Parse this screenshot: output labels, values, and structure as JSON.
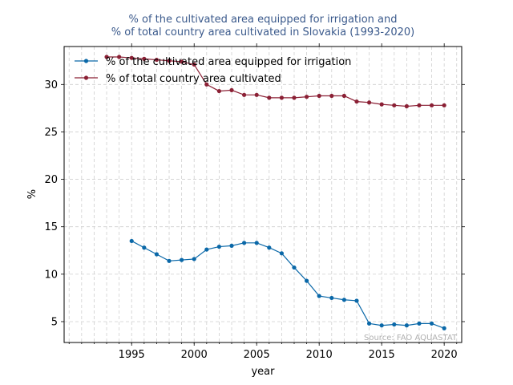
{
  "chart_data": {
    "type": "line",
    "title_lines": [
      "% of the cultivated area equipped for irrigation and",
      "% of total country area cultivated in Slovakia (1993-2020)"
    ],
    "xlabel": "year",
    "ylabel": "%",
    "xlim": [
      1989.6,
      2021.4
    ],
    "ylim": [
      2.8,
      34.0
    ],
    "x_ticks": [
      1995,
      2000,
      2005,
      2010,
      2015,
      2020
    ],
    "y_ticks": [
      5,
      10,
      15,
      20,
      25,
      30
    ],
    "grid": true,
    "legend_position": "top-left",
    "source": "Source: FAO AQUASTAT",
    "series": [
      {
        "name": "% of the cultivated area equipped for irrigation",
        "color": "#0a68a8",
        "x": [
          1995,
          1996,
          1997,
          1998,
          1999,
          2000,
          2001,
          2002,
          2003,
          2004,
          2005,
          2006,
          2007,
          2008,
          2009,
          2010,
          2011,
          2012,
          2013,
          2014,
          2015,
          2016,
          2017,
          2018,
          2019,
          2020
        ],
        "y": [
          13.5,
          12.8,
          12.1,
          11.4,
          11.5,
          11.6,
          12.6,
          12.9,
          13.0,
          13.3,
          13.3,
          12.8,
          12.2,
          10.7,
          9.3,
          7.7,
          7.5,
          7.3,
          7.2,
          4.8,
          4.6,
          4.7,
          4.6,
          4.8,
          4.8,
          4.3
        ]
      },
      {
        "name": "% of total country area cultivated",
        "color": "#8b2035",
        "x": [
          1993,
          1994,
          1995,
          1996,
          1997,
          1998,
          1999,
          2000,
          2001,
          2002,
          2003,
          2004,
          2005,
          2006,
          2007,
          2008,
          2009,
          2010,
          2011,
          2012,
          2013,
          2014,
          2015,
          2016,
          2017,
          2018,
          2019,
          2020
        ],
        "y": [
          32.9,
          32.9,
          32.8,
          32.7,
          32.6,
          32.5,
          32.4,
          32.1,
          30.0,
          29.3,
          29.4,
          28.9,
          28.9,
          28.6,
          28.6,
          28.6,
          28.7,
          28.8,
          28.8,
          28.8,
          28.2,
          28.1,
          27.9,
          27.8,
          27.7,
          27.8,
          27.8,
          27.8
        ]
      }
    ]
  }
}
